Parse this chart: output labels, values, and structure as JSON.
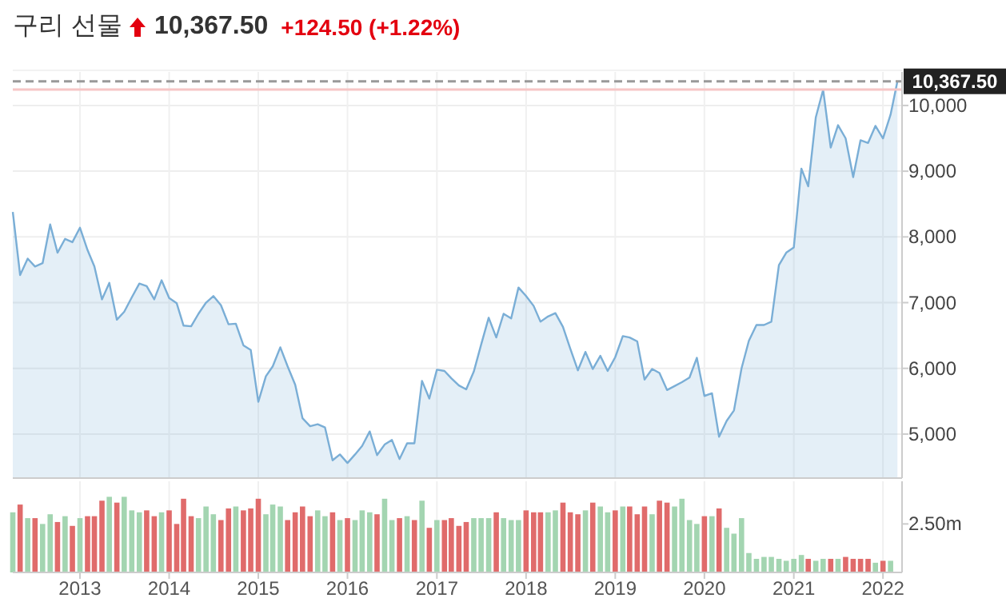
{
  "chart_data": [
    {
      "type": "area",
      "title": "구리 선물",
      "annotations": [
        "10,367.50",
        "+124.50 (+1.22%)"
      ],
      "x": [
        "2012-04",
        "2012-05",
        "2012-06",
        "2012-07",
        "2012-08",
        "2012-09",
        "2012-10",
        "2012-11",
        "2012-12",
        "2013-01",
        "2013-02",
        "2013-03",
        "2013-04",
        "2013-05",
        "2013-06",
        "2013-07",
        "2013-08",
        "2013-09",
        "2013-10",
        "2013-11",
        "2013-12",
        "2014-01",
        "2014-02",
        "2014-03",
        "2014-04",
        "2014-05",
        "2014-06",
        "2014-07",
        "2014-08",
        "2014-09",
        "2014-10",
        "2014-11",
        "2014-12",
        "2015-01",
        "2015-02",
        "2015-03",
        "2015-04",
        "2015-05",
        "2015-06",
        "2015-07",
        "2015-08",
        "2015-09",
        "2015-10",
        "2015-11",
        "2015-12",
        "2016-01",
        "2016-02",
        "2016-03",
        "2016-04",
        "2016-05",
        "2016-06",
        "2016-07",
        "2016-08",
        "2016-09",
        "2016-10",
        "2016-11",
        "2016-12",
        "2017-01",
        "2017-02",
        "2017-03",
        "2017-04",
        "2017-05",
        "2017-06",
        "2017-07",
        "2017-08",
        "2017-09",
        "2017-10",
        "2017-11",
        "2017-12",
        "2018-01",
        "2018-02",
        "2018-03",
        "2018-04",
        "2018-05",
        "2018-06",
        "2018-07",
        "2018-08",
        "2018-09",
        "2018-10",
        "2018-11",
        "2018-12",
        "2019-01",
        "2019-02",
        "2019-03",
        "2019-04",
        "2019-05",
        "2019-06",
        "2019-07",
        "2019-08",
        "2019-09",
        "2019-10",
        "2019-11",
        "2019-12",
        "2020-01",
        "2020-02",
        "2020-03",
        "2020-04",
        "2020-05",
        "2020-06",
        "2020-07",
        "2020-08",
        "2020-09",
        "2020-10",
        "2020-11",
        "2020-12",
        "2021-01",
        "2021-02",
        "2021-03",
        "2021-04",
        "2021-05",
        "2021-06",
        "2021-07",
        "2021-08",
        "2021-09",
        "2021-10",
        "2021-11",
        "2021-12",
        "2022-01",
        "2022-02",
        "2022-03"
      ],
      "series": [
        {
          "color": "#7aaed6",
          "values": [
            8380,
            7420,
            7670,
            7550,
            7600,
            8190,
            7760,
            7970,
            7920,
            8140,
            7800,
            7550,
            7050,
            7300,
            6740,
            6860,
            7080,
            7290,
            7250,
            7050,
            7340,
            7070,
            6990,
            6650,
            6640,
            6830,
            7000,
            7100,
            6960,
            6670,
            6680,
            6350,
            6280,
            5490,
            5880,
            6030,
            6320,
            6030,
            5750,
            5240,
            5120,
            5150,
            5100,
            4600,
            4690,
            4560,
            4690,
            4820,
            5040,
            4680,
            4840,
            4910,
            4620,
            4860,
            4860,
            5810,
            5540,
            5980,
            5960,
            5850,
            5740,
            5680,
            5950,
            6360,
            6770,
            6470,
            6830,
            6760,
            7230,
            7100,
            6950,
            6710,
            6790,
            6840,
            6630,
            6300,
            5970,
            6250,
            5990,
            6190,
            5960,
            6170,
            6490,
            6470,
            6410,
            5830,
            5990,
            5930,
            5670,
            5730,
            5790,
            5860,
            6160,
            5580,
            5620,
            4960,
            5200,
            5360,
            6000,
            6420,
            6660,
            6660,
            6710,
            7570,
            7760,
            7840,
            9040,
            8770,
            9820,
            10240,
            9360,
            9700,
            9500,
            8910,
            9470,
            9430,
            9690,
            9500,
            9860,
            10367.5
          ]
        }
      ],
      "xlim": [
        "2012-04",
        "2022-03-20"
      ],
      "xticks": [
        {
          "value": "2013",
          "label": null
        },
        {
          "value": "2014",
          "label": null
        },
        {
          "value": "2015",
          "label": null
        },
        {
          "value": "2016",
          "label": null
        },
        {
          "value": "2017",
          "label": null
        },
        {
          "value": "2018",
          "label": null
        },
        {
          "value": "2019",
          "label": null
        },
        {
          "value": "2020",
          "label": null
        },
        {
          "value": "2021",
          "label": null
        },
        {
          "value": "2022",
          "label": null
        }
      ],
      "ylim": [
        4330,
        10510
      ],
      "yticks": [
        {
          "value": 5000,
          "label": "5,000"
        },
        {
          "value": 6000,
          "label": "6,000"
        },
        {
          "value": 7000,
          "label": "7,000"
        },
        {
          "value": 8000,
          "label": "8,000"
        },
        {
          "value": 9000,
          "label": "9,000"
        },
        {
          "value": 10000,
          "label": "10,000"
        }
      ],
      "ref_lines": [
        {
          "axis": "y",
          "value": 10367.5,
          "label": "10,367.50",
          "color": "#999999",
          "line_style": "dashed"
        },
        {
          "axis": "y",
          "value": 10243,
          "color": "#f6c6c6",
          "line_style": "solid"
        }
      ],
      "grid": true,
      "tick_labels": "y"
    },
    {
      "type": "bar",
      "x": [
        "2012-04",
        "2012-05",
        "2012-06",
        "2012-07",
        "2012-08",
        "2012-09",
        "2012-10",
        "2012-11",
        "2012-12",
        "2013-01",
        "2013-02",
        "2013-03",
        "2013-04",
        "2013-05",
        "2013-06",
        "2013-07",
        "2013-08",
        "2013-09",
        "2013-10",
        "2013-11",
        "2013-12",
        "2014-01",
        "2014-02",
        "2014-03",
        "2014-04",
        "2014-05",
        "2014-06",
        "2014-07",
        "2014-08",
        "2014-09",
        "2014-10",
        "2014-11",
        "2014-12",
        "2015-01",
        "2015-02",
        "2015-03",
        "2015-04",
        "2015-05",
        "2015-06",
        "2015-07",
        "2015-08",
        "2015-09",
        "2015-10",
        "2015-11",
        "2015-12",
        "2016-01",
        "2016-02",
        "2016-03",
        "2016-04",
        "2016-05",
        "2016-06",
        "2016-07",
        "2016-08",
        "2016-09",
        "2016-10",
        "2016-11",
        "2016-12",
        "2017-01",
        "2017-02",
        "2017-03",
        "2017-04",
        "2017-05",
        "2017-06",
        "2017-07",
        "2017-08",
        "2017-09",
        "2017-10",
        "2017-11",
        "2017-12",
        "2018-01",
        "2018-02",
        "2018-03",
        "2018-04",
        "2018-05",
        "2018-06",
        "2018-07",
        "2018-08",
        "2018-09",
        "2018-10",
        "2018-11",
        "2018-12",
        "2019-01",
        "2019-02",
        "2019-03",
        "2019-04",
        "2019-05",
        "2019-06",
        "2019-07",
        "2019-08",
        "2019-09",
        "2019-10",
        "2019-11",
        "2019-12",
        "2020-01",
        "2020-02",
        "2020-03",
        "2020-04",
        "2020-05",
        "2020-06",
        "2020-07",
        "2020-08",
        "2020-09",
        "2020-10",
        "2020-11",
        "2020-12",
        "2021-01",
        "2021-02",
        "2021-03",
        "2021-04",
        "2021-05",
        "2021-06",
        "2021-07",
        "2021-08",
        "2021-09",
        "2021-10",
        "2021-11",
        "2021-12",
        "2022-01",
        "2022-02"
      ],
      "values": [
        3.1,
        3.5,
        2.8,
        2.8,
        2.5,
        3.0,
        2.6,
        2.9,
        2.4,
        2.8,
        2.9,
        2.9,
        3.7,
        3.9,
        3.6,
        3.9,
        3.2,
        3.1,
        3.2,
        2.9,
        3.1,
        3.2,
        2.5,
        3.8,
        2.9,
        2.8,
        3.4,
        3.0,
        2.7,
        3.3,
        3.4,
        3.2,
        3.3,
        3.8,
        3.0,
        3.5,
        3.4,
        2.7,
        3.1,
        3.4,
        2.9,
        3.2,
        2.9,
        3.1,
        2.7,
        2.8,
        2.7,
        3.2,
        3.1,
        3.0,
        3.8,
        2.7,
        2.8,
        2.9,
        2.7,
        3.7,
        2.3,
        2.7,
        2.7,
        2.8,
        2.4,
        2.6,
        2.8,
        2.8,
        2.8,
        3.1,
        2.8,
        2.7,
        2.7,
        3.2,
        3.1,
        3.1,
        3.1,
        3.2,
        3.6,
        3.1,
        3.0,
        3.2,
        3.6,
        3.4,
        3.1,
        3.2,
        3.4,
        3.4,
        3.0,
        3.4,
        3.0,
        3.7,
        3.6,
        3.4,
        3.8,
        2.7,
        2.5,
        2.9,
        2.9,
        3.3,
        2.3,
        2.0,
        2.8,
        1.0,
        0.7,
        0.8,
        0.8,
        0.7,
        0.6,
        0.7,
        0.9,
        0.7,
        0.6,
        0.7,
        0.7,
        0.7,
        0.8,
        0.7,
        0.7,
        0.7,
        0.5,
        0.6,
        0.6
      ],
      "colors": [
        "#a3d5b1",
        "#e06b6b",
        "#a3d5b1",
        "#e06b6b",
        "#a3d5b1",
        "#a3d5b1",
        "#e06b6b",
        "#a3d5b1",
        "#e06b6b",
        "#a3d5b1",
        "#e06b6b",
        "#e06b6b",
        "#e06b6b",
        "#a3d5b1",
        "#e06b6b",
        "#a3d5b1",
        "#a3d5b1",
        "#a3d5b1",
        "#e06b6b",
        "#e06b6b",
        "#a3d5b1",
        "#e06b6b",
        "#e06b6b",
        "#e06b6b",
        "#e06b6b",
        "#a3d5b1",
        "#a3d5b1",
        "#a3d5b1",
        "#e06b6b",
        "#e06b6b",
        "#a3d5b1",
        "#e06b6b",
        "#e06b6b",
        "#e06b6b",
        "#a3d5b1",
        "#a3d5b1",
        "#a3d5b1",
        "#e06b6b",
        "#e06b6b",
        "#e06b6b",
        "#e06b6b",
        "#a3d5b1",
        "#a3d5b1",
        "#e06b6b",
        "#a3d5b1",
        "#e06b6b",
        "#a3d5b1",
        "#a3d5b1",
        "#a3d5b1",
        "#e06b6b",
        "#a3d5b1",
        "#a3d5b1",
        "#e06b6b",
        "#a3d5b1",
        "#e06b6b",
        "#a3d5b1",
        "#e06b6b",
        "#a3d5b1",
        "#e06b6b",
        "#e06b6b",
        "#e06b6b",
        "#e06b6b",
        "#a3d5b1",
        "#a3d5b1",
        "#a3d5b1",
        "#e06b6b",
        "#a3d5b1",
        "#a3d5b1",
        "#a3d5b1",
        "#e06b6b",
        "#e06b6b",
        "#e06b6b",
        "#a3d5b1",
        "#a3d5b1",
        "#e06b6b",
        "#e06b6b",
        "#e06b6b",
        "#a3d5b1",
        "#e06b6b",
        "#a3d5b1",
        "#a3d5b1",
        "#e06b6b",
        "#a3d5b1",
        "#e06b6b",
        "#e06b6b",
        "#e06b6b",
        "#a3d5b1",
        "#e06b6b",
        "#e06b6b",
        "#a3d5b1",
        "#a3d5b1",
        "#a3d5b1",
        "#a3d5b1",
        "#e06b6b",
        "#a3d5b1",
        "#e06b6b",
        "#a3d5b1",
        "#a3d5b1",
        "#a3d5b1",
        "#a3d5b1",
        "#a3d5b1",
        "#a3d5b1",
        "#a3d5b1",
        "#a3d5b1",
        "#a3d5b1",
        "#a3d5b1",
        "#a3d5b1",
        "#e06b6b",
        "#a3d5b1",
        "#a3d5b1",
        "#e06b6b",
        "#a3d5b1",
        "#e06b6b",
        "#e06b6b",
        "#e06b6b",
        "#e06b6b",
        "#a3d5b1",
        "#e06b6b",
        "#a3d5b1"
      ],
      "xlim": [
        "2012-04",
        "2022-03-20"
      ],
      "xticks": [
        {
          "value": "2013",
          "label": "2013"
        },
        {
          "value": "2014",
          "label": "2014"
        },
        {
          "value": "2015",
          "label": "2015"
        },
        {
          "value": "2016",
          "label": "2016"
        },
        {
          "value": "2017",
          "label": "2017"
        },
        {
          "value": "2018",
          "label": "2018"
        },
        {
          "value": "2019",
          "label": "2019"
        },
        {
          "value": "2020",
          "label": "2020"
        },
        {
          "value": "2021",
          "label": "2021"
        },
        {
          "value": "2022",
          "label": "2022"
        }
      ],
      "ylim": [
        0,
        4.7
      ],
      "yticks": [
        {
          "value": 2.5,
          "label": "2.50m"
        }
      ],
      "grid": "x"
    }
  ]
}
